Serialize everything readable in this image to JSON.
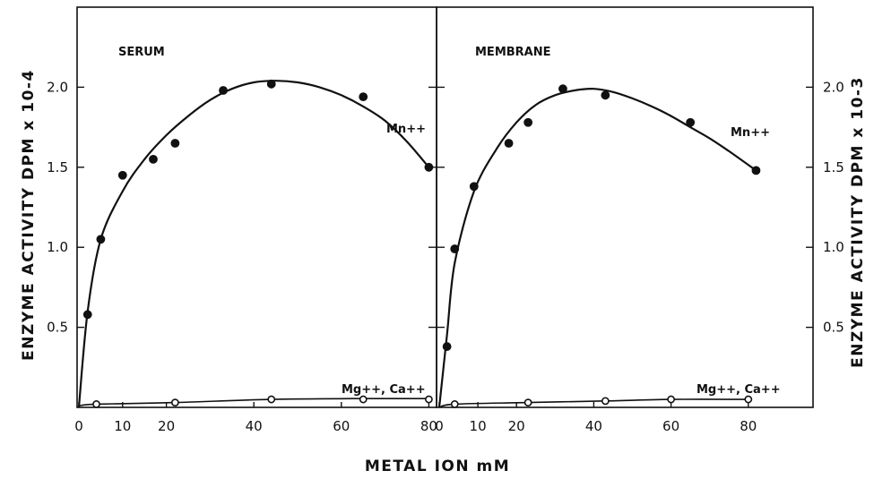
{
  "chart_data": {
    "type": "line",
    "xlabel": "METAL ION mM",
    "panels": [
      {
        "title": "SERUM",
        "ylabel": "ENZYME ACTIVITY DPM x 10-4",
        "xlim": [
          0,
          85
        ],
        "ylim": [
          0,
          2.5
        ],
        "xticks": [
          0,
          10,
          20,
          40,
          60,
          80
        ],
        "yticks": [
          "0.5",
          "1.0",
          "1.5",
          "2.0"
        ],
        "series": [
          {
            "name": "Mn++",
            "marker": "filled",
            "x": [
              2,
              5,
              10,
              17,
              22,
              33,
              44,
              65,
              80
            ],
            "y": [
              0.58,
              1.05,
              1.45,
              1.55,
              1.65,
              1.98,
              2.02,
              1.94,
              1.5
            ],
            "curve_x": [
              0,
              2,
              5,
              10,
              15,
              20,
              25,
              30,
              35,
              40,
              45,
              50,
              55,
              60,
              65,
              70,
              75,
              80
            ],
            "curve_y": [
              0,
              0.6,
              1.05,
              1.35,
              1.55,
              1.7,
              1.82,
              1.92,
              1.99,
              2.03,
              2.04,
              2.03,
              2.0,
              1.95,
              1.88,
              1.79,
              1.66,
              1.5
            ]
          },
          {
            "name": "Mg++, Ca++",
            "marker": "open",
            "x": [
              4,
              22,
              44,
              65,
              80
            ],
            "y": [
              0.02,
              0.03,
              0.05,
              0.05,
              0.05
            ],
            "curve_x": [
              0,
              4,
              22,
              44,
              65,
              80
            ],
            "curve_y": [
              0.01,
              0.02,
              0.03,
              0.05,
              0.055,
              0.055
            ]
          }
        ]
      },
      {
        "title": "MEMBRANE",
        "ylabel": "ENZYME ACTIVITY DPM x 10-3",
        "xlim": [
          0,
          85
        ],
        "ylim": [
          0,
          2.5
        ],
        "xticks": [
          0,
          10,
          20,
          40,
          60,
          80
        ],
        "yticks": [
          "0.5",
          "1.0",
          "1.5",
          "2.0"
        ],
        "series": [
          {
            "name": "Mn++",
            "marker": "filled",
            "x": [
              2,
              4,
              9,
              18,
              23,
              32,
              43,
              65,
              82
            ],
            "y": [
              0.38,
              0.99,
              1.38,
              1.65,
              1.78,
              1.99,
              1.95,
              1.78,
              1.48
            ],
            "curve_x": [
              0,
              2,
              4,
              9,
              15,
              20,
              25,
              30,
              35,
              40,
              45,
              50,
              55,
              60,
              65,
              70,
              75,
              82
            ],
            "curve_y": [
              0,
              0.45,
              0.9,
              1.35,
              1.62,
              1.78,
              1.89,
              1.95,
              1.98,
              1.99,
              1.97,
              1.93,
              1.88,
              1.82,
              1.75,
              1.68,
              1.6,
              1.48
            ]
          },
          {
            "name": "Mg++, Ca++",
            "marker": "open",
            "x": [
              4,
              23,
              43,
              60,
              80
            ],
            "y": [
              0.02,
              0.03,
              0.04,
              0.05,
              0.05
            ],
            "curve_x": [
              0,
              4,
              23,
              43,
              60,
              80
            ],
            "curve_y": [
              0.0,
              0.02,
              0.03,
              0.04,
              0.05,
              0.05
            ]
          }
        ]
      }
    ]
  }
}
